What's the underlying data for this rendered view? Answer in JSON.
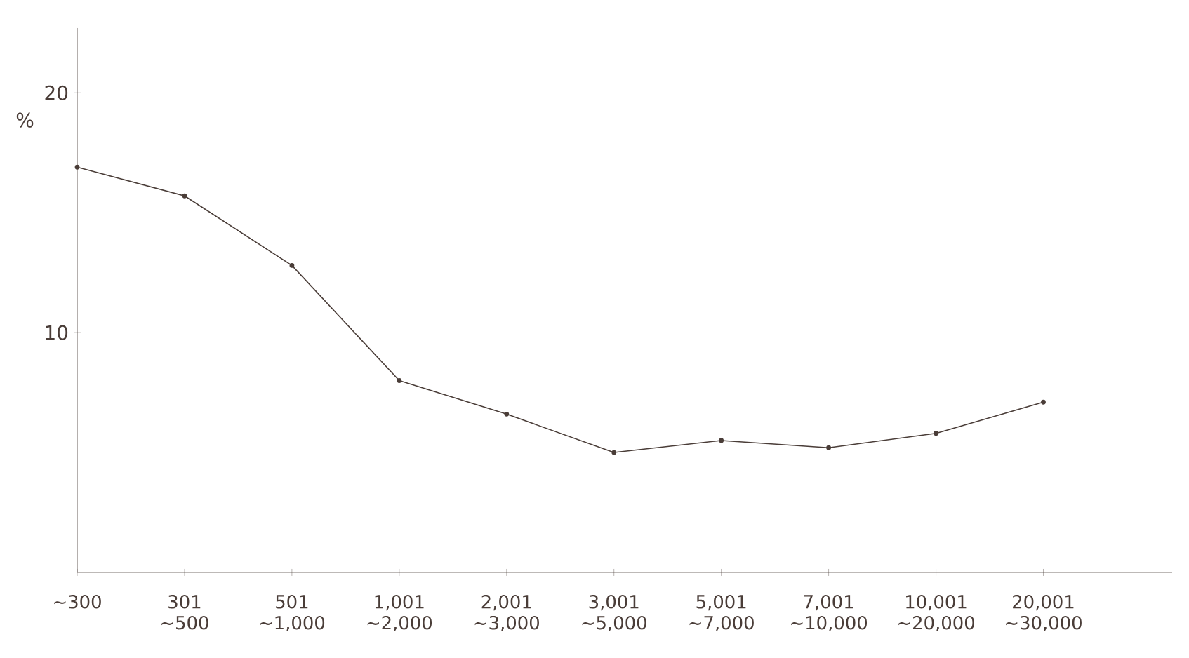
{
  "chart_data": {
    "type": "line",
    "categories": [
      "∼300",
      "301 ∼500",
      "501 ∼1,000",
      "1,001 ∼2,000",
      "2,001 ∼3,000",
      "3,001 ∼5,000",
      "5,001 ∼7,000",
      "7,001 ∼10,000",
      "10,001 ∼20,000",
      "20,001 ∼30,000"
    ],
    "values": [
      16.9,
      15.7,
      12.8,
      8.0,
      6.6,
      5.0,
      5.5,
      5.2,
      5.8,
      7.1
    ],
    "color": "#4a3d38",
    "ylabel": "%",
    "ylim": [
      0,
      22.7
    ],
    "yticks": [
      10,
      20
    ],
    "marker": "circle",
    "line_style": "solid",
    "grid": false,
    "legend": false
  }
}
